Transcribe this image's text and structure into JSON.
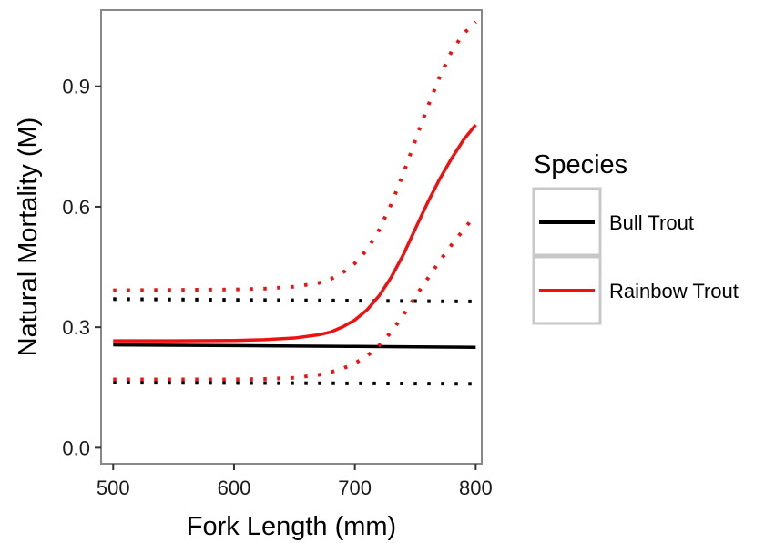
{
  "chart_data": {
    "type": "line",
    "title": "",
    "xlabel": "Fork Length (mm)",
    "ylabel": "Natural Mortality (M)",
    "xlim": [
      490,
      805
    ],
    "ylim": [
      -0.04,
      1.09
    ],
    "x_ticks": [
      500,
      600,
      700,
      800
    ],
    "y_ticks": [
      0.0,
      0.3,
      0.6,
      0.9
    ],
    "x_tick_labels": [
      "500",
      "600",
      "700",
      "800"
    ],
    "y_tick_labels": [
      "0.0",
      "0.3",
      "0.6",
      "0.9"
    ],
    "grid": false,
    "legend": {
      "title": "Species",
      "position": "right",
      "entries": [
        "Bull Trout",
        "Rainbow Trout"
      ]
    },
    "series": [
      {
        "name": "Bull Trout",
        "color": "#000000",
        "x": [
          500,
          550,
          600,
          650,
          700,
          750,
          800
        ],
        "y": [
          0.256,
          0.255,
          0.254,
          0.253,
          0.252,
          0.251,
          0.25
        ],
        "lower": {
          "x": [
            500,
            600,
            700,
            800
          ],
          "y": [
            0.162,
            0.161,
            0.16,
            0.159
          ]
        },
        "upper": {
          "x": [
            500,
            600,
            700,
            800
          ],
          "y": [
            0.37,
            0.368,
            0.366,
            0.364
          ]
        }
      },
      {
        "name": "Rainbow Trout",
        "color": "#ee1111",
        "x": [
          500,
          550,
          600,
          625,
          650,
          670,
          680,
          690,
          700,
          710,
          720,
          730,
          740,
          750,
          760,
          770,
          780,
          790,
          800
        ],
        "y": [
          0.266,
          0.266,
          0.267,
          0.269,
          0.273,
          0.281,
          0.288,
          0.301,
          0.318,
          0.343,
          0.378,
          0.424,
          0.48,
          0.545,
          0.609,
          0.668,
          0.72,
          0.767,
          0.804
        ],
        "lower": {
          "x": [
            500,
            550,
            600,
            625,
            650,
            670,
            680,
            690,
            700,
            710,
            720,
            730,
            740,
            750,
            760,
            770,
            780,
            790,
            800
          ],
          "y": [
            0.17,
            0.17,
            0.17,
            0.171,
            0.174,
            0.181,
            0.188,
            0.197,
            0.21,
            0.228,
            0.254,
            0.288,
            0.33,
            0.376,
            0.42,
            0.464,
            0.505,
            0.543,
            0.58
          ]
        },
        "upper": {
          "x": [
            500,
            550,
            600,
            625,
            650,
            670,
            680,
            690,
            700,
            710,
            720,
            730,
            740,
            750,
            760,
            770,
            780,
            790,
            800
          ],
          "y": [
            0.392,
            0.393,
            0.394,
            0.396,
            0.401,
            0.41,
            0.42,
            0.436,
            0.459,
            0.493,
            0.542,
            0.606,
            0.682,
            0.765,
            0.847,
            0.922,
            0.987,
            1.031,
            1.061
          ]
        }
      }
    ]
  }
}
